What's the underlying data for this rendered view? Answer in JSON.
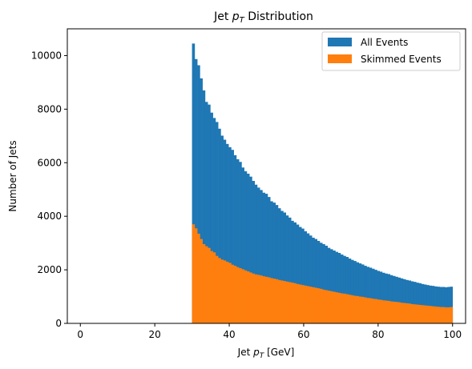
{
  "chart_data": {
    "type": "bar",
    "title": "Jet p_T Distribution",
    "title_parts": {
      "pre": "Jet ",
      "var": "p",
      "sub": "T",
      "post": " Distribution"
    },
    "xlabel": "Jet p_T [GeV]",
    "xlabel_parts": {
      "pre": "Jet ",
      "var": "p",
      "sub": "T",
      "post": " [GeV]"
    },
    "ylabel": "Number of Jets",
    "xlim": [
      -3.5,
      103.5
    ],
    "ylim": [
      0,
      11000
    ],
    "xticks": [
      0,
      20,
      40,
      60,
      80,
      100
    ],
    "yticks": [
      0,
      2000,
      4000,
      6000,
      8000,
      10000
    ],
    "legend_position": "top-right",
    "grid": false,
    "bin_start": 30,
    "bin_width": 0.7,
    "series": [
      {
        "name": "All Events",
        "color": "#1f77b4",
        "values": [
          10450,
          9870,
          9640,
          9150,
          8700,
          8270,
          8170,
          7870,
          7670,
          7520,
          7270,
          7010,
          6860,
          6700,
          6580,
          6480,
          6280,
          6130,
          6030,
          5820,
          5680,
          5590,
          5480,
          5320,
          5180,
          5070,
          4980,
          4880,
          4840,
          4720,
          4560,
          4510,
          4420,
          4300,
          4200,
          4140,
          4030,
          3950,
          3830,
          3770,
          3690,
          3600,
          3540,
          3440,
          3360,
          3280,
          3200,
          3150,
          3080,
          3010,
          2960,
          2900,
          2820,
          2770,
          2720,
          2670,
          2630,
          2570,
          2520,
          2480,
          2420,
          2370,
          2330,
          2280,
          2240,
          2200,
          2150,
          2110,
          2080,
          2040,
          2000,
          1960,
          1930,
          1890,
          1860,
          1840,
          1800,
          1770,
          1740,
          1710,
          1680,
          1650,
          1620,
          1600,
          1570,
          1550,
          1520,
          1500,
          1470,
          1450,
          1430,
          1410,
          1400,
          1380,
          1370,
          1360,
          1360,
          1350,
          1360,
          1370
        ]
      },
      {
        "name": "Skimmed Events",
        "color": "#ff7f0e",
        "values": [
          3700,
          3550,
          3350,
          3150,
          2960,
          2880,
          2820,
          2700,
          2650,
          2520,
          2440,
          2380,
          2350,
          2300,
          2260,
          2190,
          2150,
          2100,
          2060,
          2020,
          1980,
          1940,
          1900,
          1860,
          1830,
          1810,
          1790,
          1760,
          1740,
          1720,
          1690,
          1670,
          1650,
          1620,
          1600,
          1580,
          1560,
          1540,
          1520,
          1500,
          1470,
          1450,
          1430,
          1410,
          1390,
          1370,
          1350,
          1330,
          1310,
          1290,
          1260,
          1240,
          1220,
          1200,
          1180,
          1160,
          1140,
          1120,
          1110,
          1090,
          1070,
          1050,
          1030,
          1020,
          1000,
          990,
          970,
          950,
          940,
          920,
          910,
          890,
          880,
          860,
          850,
          840,
          820,
          810,
          800,
          790,
          770,
          760,
          750,
          740,
          720,
          710,
          700,
          690,
          680,
          670,
          660,
          650,
          640,
          630,
          620,
          610,
          610,
          600,
          600,
          610
        ]
      }
    ]
  }
}
